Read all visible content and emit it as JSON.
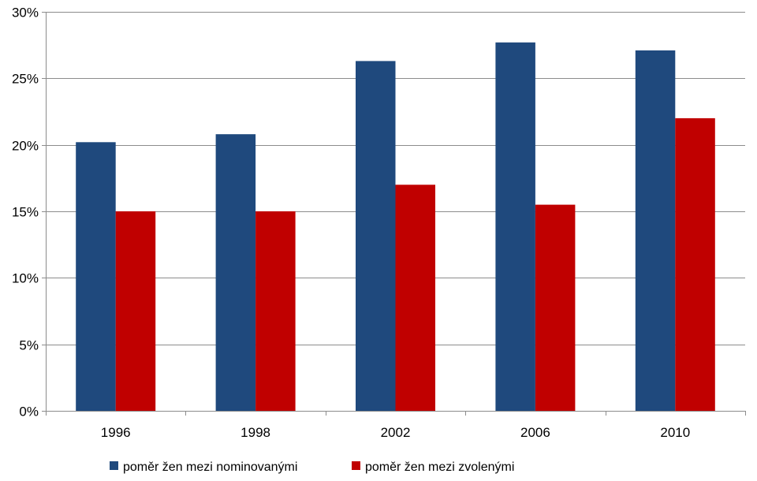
{
  "chart_data": {
    "type": "bar",
    "categories": [
      "1996",
      "1998",
      "2002",
      "2006",
      "2010"
    ],
    "series": [
      {
        "name": "poměr žen mezi nominovanými",
        "color": "#1F497D",
        "values": [
          0.202,
          0.208,
          0.263,
          0.277,
          0.271
        ]
      },
      {
        "name": "poměr žen mezi zvolenými",
        "color": "#C00000",
        "values": [
          0.15,
          0.15,
          0.17,
          0.155,
          0.22
        ]
      }
    ],
    "ylim": [
      0,
      0.3
    ],
    "yticks": [
      0,
      0.05,
      0.1,
      0.15,
      0.2,
      0.25,
      0.3
    ],
    "ytick_labels": [
      "0%",
      "5%",
      "10%",
      "15%",
      "20%",
      "25%",
      "30%"
    ],
    "grid": true,
    "legend_position": "bottom",
    "title": "",
    "xlabel": "",
    "ylabel": ""
  }
}
